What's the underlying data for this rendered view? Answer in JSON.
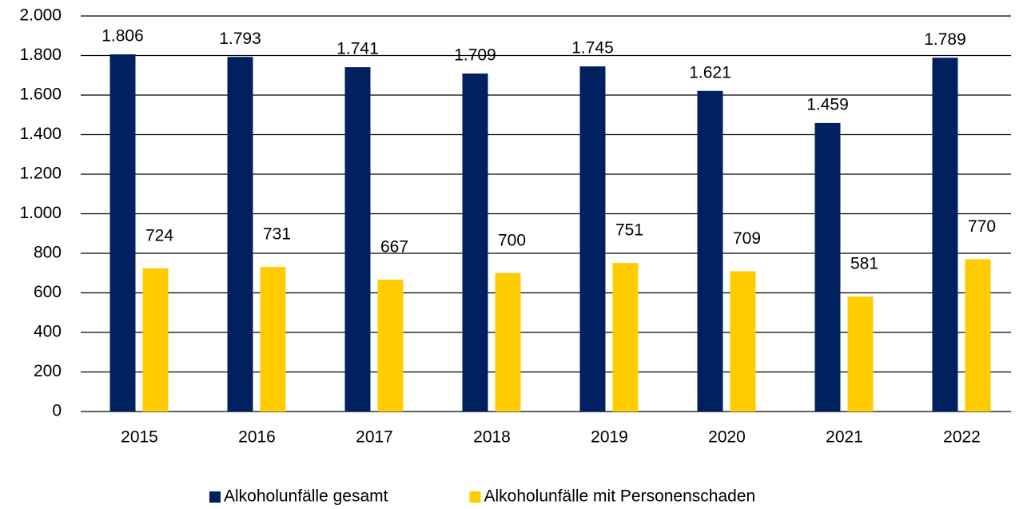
{
  "chart_data": {
    "type": "bar",
    "categories": [
      "2015",
      "2016",
      "2017",
      "2018",
      "2019",
      "2020",
      "2021",
      "2022"
    ],
    "series": [
      {
        "name": "Alkoholunfälle gesamt",
        "color": "#002060",
        "values": [
          1806,
          1793,
          1741,
          1709,
          1745,
          1621,
          1459,
          1789
        ],
        "value_labels": [
          "1.806",
          "1.793",
          "1.741",
          "1.709",
          "1.745",
          "1.621",
          "1.459",
          "1.789"
        ]
      },
      {
        "name": "Alkoholunfälle mit Personenschaden",
        "color": "#ffcc00",
        "values": [
          724,
          731,
          667,
          700,
          751,
          709,
          581,
          770
        ]
      }
    ],
    "ylim": [
      0,
      2000
    ],
    "yticks": [
      0,
      200,
      400,
      600,
      800,
      {
        "value": 1000,
        "label": "1.000"
      },
      {
        "value": 1200,
        "label": "1.200"
      },
      {
        "value": 1400,
        "label": "1.400"
      },
      {
        "value": 1600,
        "label": "1.600"
      },
      {
        "value": 1800,
        "label": "1.800"
      },
      {
        "value": 2000,
        "label": "2.000"
      }
    ],
    "grid": true,
    "legend": "bottom"
  }
}
